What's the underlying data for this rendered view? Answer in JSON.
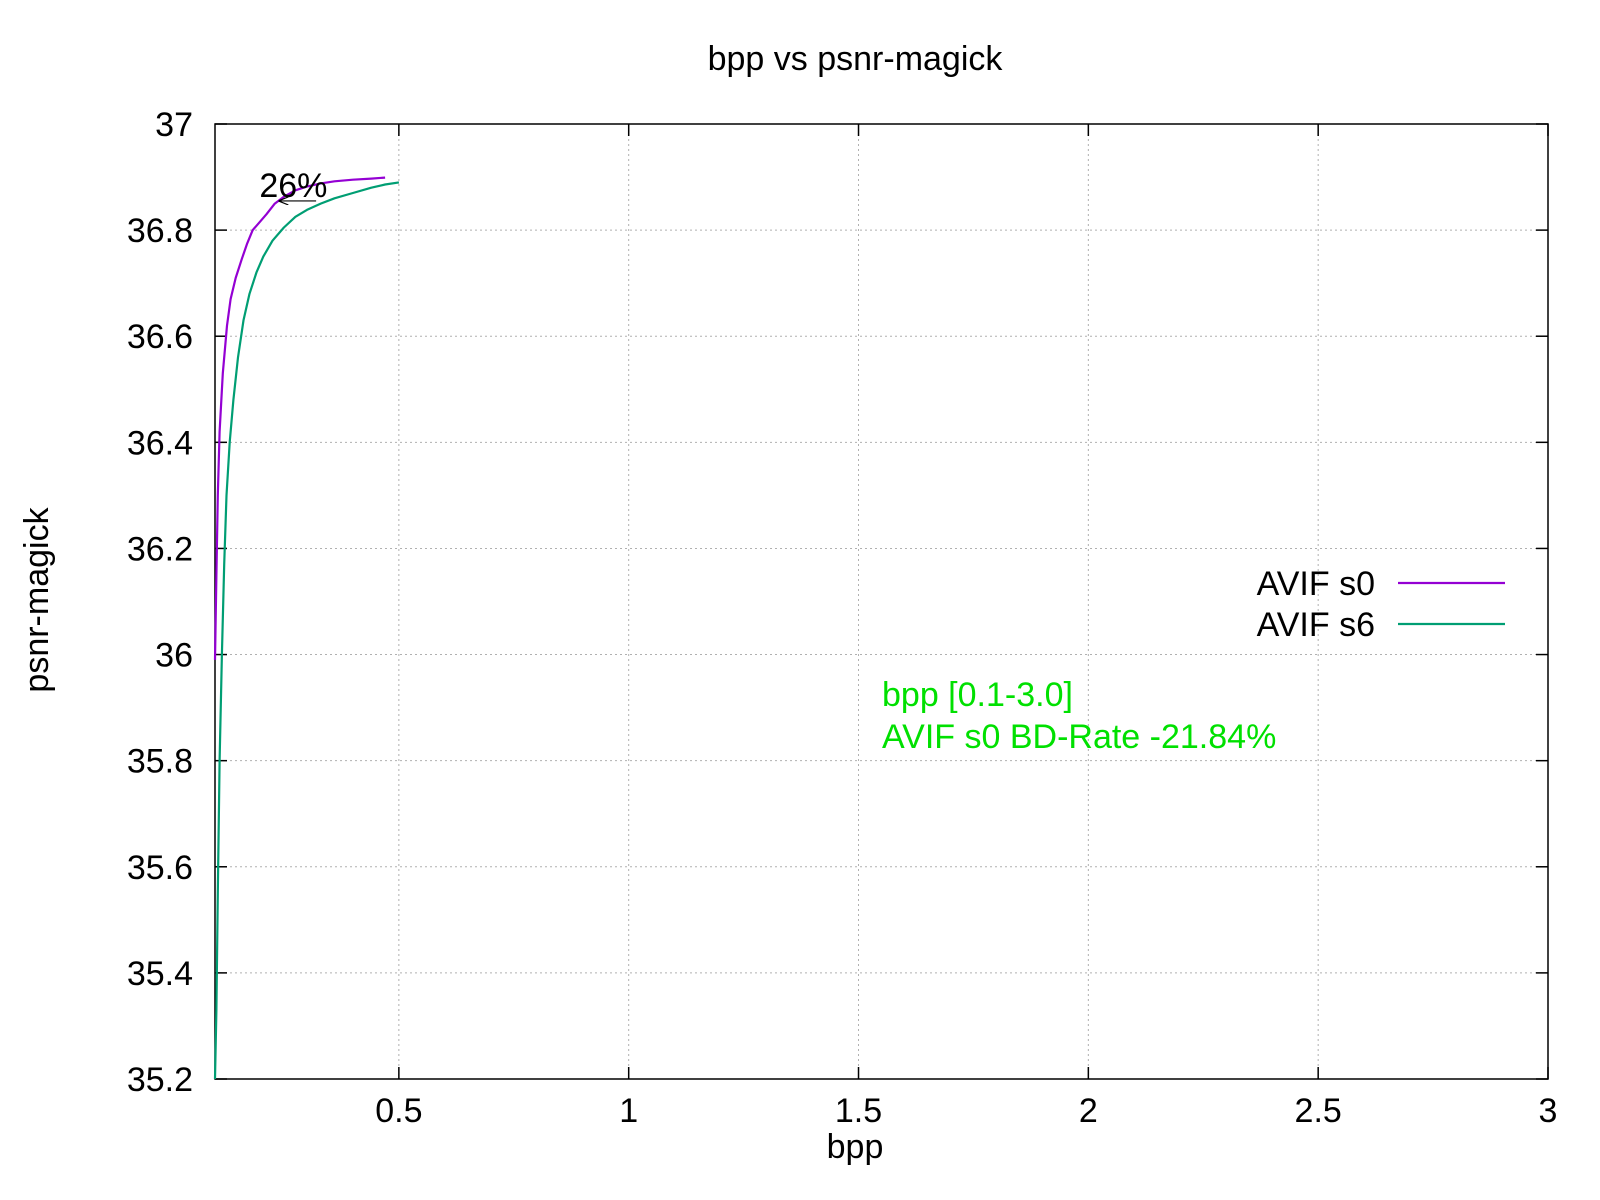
{
  "chart_data": {
    "type": "line",
    "title": "bpp vs psnr-magick",
    "xlabel": "bpp",
    "ylabel": "psnr-magick",
    "xlim": [
      0.1,
      3
    ],
    "ylim": [
      35.2,
      37
    ],
    "grid": true,
    "legend_position": "right",
    "x_ticks": [
      {
        "value": 0.5,
        "label": "0.5"
      },
      {
        "value": 1,
        "label": "1"
      },
      {
        "value": 1.5,
        "label": "1.5"
      },
      {
        "value": 2,
        "label": "2"
      },
      {
        "value": 2.5,
        "label": "2.5"
      },
      {
        "value": 3,
        "label": "3"
      }
    ],
    "y_ticks": [
      {
        "value": 35.2,
        "label": "35.2"
      },
      {
        "value": 35.4,
        "label": "35.4"
      },
      {
        "value": 35.6,
        "label": "35.6"
      },
      {
        "value": 35.8,
        "label": "35.8"
      },
      {
        "value": 36,
        "label": "36"
      },
      {
        "value": 36.2,
        "label": "36.2"
      },
      {
        "value": 36.4,
        "label": "36.4"
      },
      {
        "value": 36.6,
        "label": "36.6"
      },
      {
        "value": 36.8,
        "label": "36.8"
      },
      {
        "value": 37,
        "label": "37"
      }
    ],
    "series": [
      {
        "name": "AVIF s0",
        "color": "#9400d3",
        "points": [
          [
            0.1,
            35.99
          ],
          [
            0.103,
            36.15
          ],
          [
            0.106,
            36.3
          ],
          [
            0.11,
            36.42
          ],
          [
            0.117,
            36.53
          ],
          [
            0.126,
            36.62
          ],
          [
            0.134,
            36.67
          ],
          [
            0.145,
            36.71
          ],
          [
            0.158,
            36.745
          ],
          [
            0.17,
            36.775
          ],
          [
            0.182,
            36.8
          ],
          [
            0.197,
            36.815
          ],
          [
            0.212,
            36.83
          ],
          [
            0.23,
            36.85
          ],
          [
            0.25,
            36.863
          ],
          [
            0.275,
            36.875
          ],
          [
            0.3,
            36.882
          ],
          [
            0.33,
            36.888
          ],
          [
            0.36,
            36.892
          ],
          [
            0.4,
            36.895
          ],
          [
            0.44,
            36.897
          ],
          [
            0.47,
            36.899
          ]
        ]
      },
      {
        "name": "AVIF s6",
        "color": "#009e73",
        "points": [
          [
            0.1,
            35.2
          ],
          [
            0.103,
            35.33
          ],
          [
            0.106,
            35.55
          ],
          [
            0.11,
            35.8
          ],
          [
            0.115,
            36.0
          ],
          [
            0.12,
            36.17
          ],
          [
            0.125,
            36.3
          ],
          [
            0.132,
            36.4
          ],
          [
            0.14,
            36.48
          ],
          [
            0.15,
            36.56
          ],
          [
            0.162,
            36.63
          ],
          [
            0.175,
            36.68
          ],
          [
            0.19,
            36.72
          ],
          [
            0.205,
            36.75
          ],
          [
            0.225,
            36.78
          ],
          [
            0.25,
            36.805
          ],
          [
            0.275,
            36.825
          ],
          [
            0.3,
            36.838
          ],
          [
            0.33,
            36.85
          ],
          [
            0.36,
            36.86
          ],
          [
            0.4,
            36.87
          ],
          [
            0.44,
            36.88
          ],
          [
            0.47,
            36.886
          ],
          [
            0.5,
            36.89
          ]
        ]
      }
    ],
    "annotations": {
      "arrow_label": "26%",
      "arrow_from": [
        0.32,
        36.855
      ],
      "arrow_to": [
        0.24,
        36.855
      ],
      "bd_line1": "bpp [0.1-3.0]",
      "bd_line2": "AVIF s0 BD-Rate -21.84%",
      "bd_color": "#00e000"
    }
  }
}
